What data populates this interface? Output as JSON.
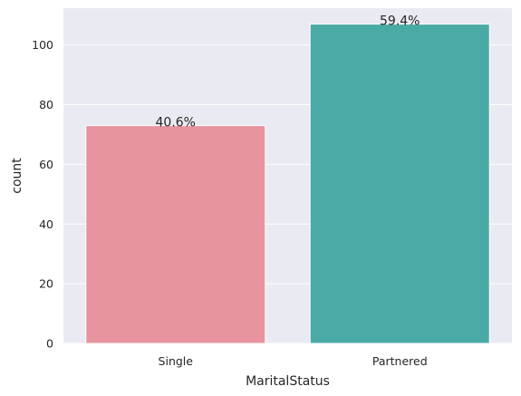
{
  "chart_data": {
    "type": "bar",
    "categories": [
      "Single",
      "Partnered"
    ],
    "values": [
      73,
      107
    ],
    "data_labels": [
      "40.6%",
      "59.4%"
    ],
    "colors": [
      "#e8949f",
      "#4aaaa5"
    ],
    "xlabel": "MaritalStatus",
    "ylabel": "count",
    "ylim": [
      0,
      112.35
    ],
    "yticks": [
      0,
      20,
      40,
      60,
      80,
      100
    ],
    "grid": true,
    "background": "#eaeaf2",
    "grid_color": "#ffffff"
  }
}
